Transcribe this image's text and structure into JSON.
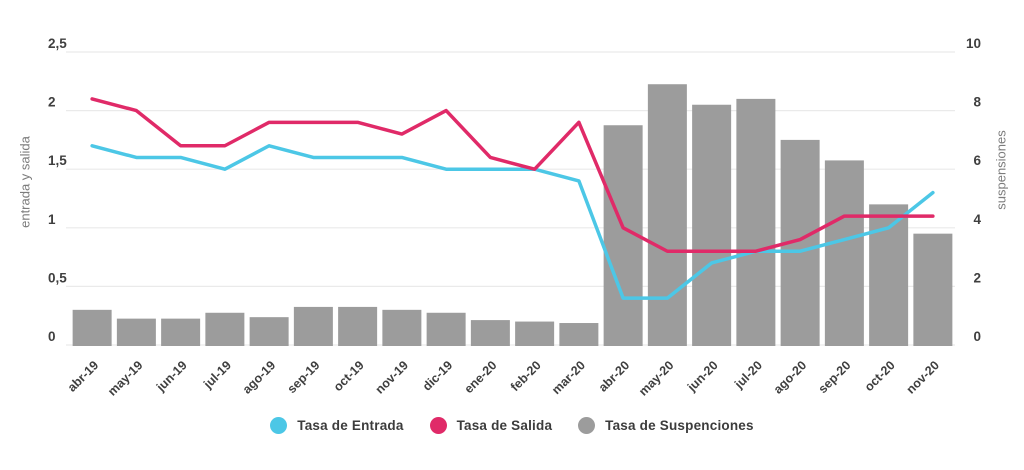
{
  "chart_data": {
    "type": "bar",
    "combo": "bars with two overlaid lines",
    "title": "",
    "categories": [
      "abr-19",
      "may-19",
      "jun-19",
      "jul-19",
      "ago-19",
      "sep-19",
      "oct-19",
      "nov-19",
      "dic-19",
      "ene-20",
      "feb-20",
      "mar-20",
      "abr-20",
      "may-20",
      "jun-20",
      "jul-20",
      "ago-20",
      "sep-20",
      "oct-20",
      "nov-20"
    ],
    "series": [
      {
        "name": "Tasa de Entrada",
        "type": "line",
        "axis": "left",
        "color": "#4cc7e6",
        "values": [
          1.7,
          1.6,
          1.6,
          1.5,
          1.7,
          1.6,
          1.6,
          1.6,
          1.5,
          1.5,
          1.5,
          1.4,
          0.4,
          0.4,
          0.7,
          0.8,
          0.8,
          0.9,
          1.0,
          1.3
        ]
      },
      {
        "name": "Tasa de Salida",
        "type": "line",
        "axis": "left",
        "color": "#e02a68",
        "values": [
          2.1,
          2.0,
          1.7,
          1.7,
          1.9,
          1.9,
          1.9,
          1.8,
          2.0,
          1.6,
          1.5,
          1.9,
          1.0,
          0.8,
          0.8,
          0.8,
          0.9,
          1.1,
          1.1,
          1.1
        ]
      },
      {
        "name": "Tasa de Suspenciones",
        "type": "bar",
        "axis": "right",
        "color": "#9c9c9c",
        "values": [
          1.2,
          0.9,
          0.9,
          1.1,
          0.95,
          1.3,
          1.3,
          1.2,
          1.1,
          0.85,
          0.8,
          0.75,
          7.5,
          8.9,
          8.2,
          8.4,
          7.0,
          6.3,
          4.8,
          3.8
        ]
      }
    ],
    "left_axis": {
      "label": "entrada y salida",
      "ticks": [
        "2,5",
        "2",
        "1,5",
        "1",
        "0,5",
        "0"
      ],
      "tick_values": [
        2.5,
        2,
        1.5,
        1,
        0.5,
        0
      ],
      "range": [
        0,
        2.5
      ]
    },
    "right_axis": {
      "label": "suspensiones",
      "ticks": [
        "10",
        "8",
        "6",
        "4",
        "2",
        "0"
      ],
      "tick_values": [
        10,
        8,
        6,
        4,
        2,
        0
      ],
      "range": [
        0,
        10
      ]
    },
    "grid": true,
    "legend_position": "bottom",
    "x_tick_rotation_deg": -45
  },
  "legend": {
    "items": [
      {
        "label": "Tasa de Entrada",
        "color": "#4cc7e6"
      },
      {
        "label": "Tasa de Salida",
        "color": "#e02a68"
      },
      {
        "label": "Tasa de Suspenciones",
        "color": "#9c9c9c"
      }
    ]
  },
  "styles": {
    "background": "#ffffff",
    "grid_color": "#eaeaea",
    "tick_color": "#3f3f3f",
    "axis_title_color": "#7c7c7c",
    "legend_text_color": "#3c3c3c"
  }
}
